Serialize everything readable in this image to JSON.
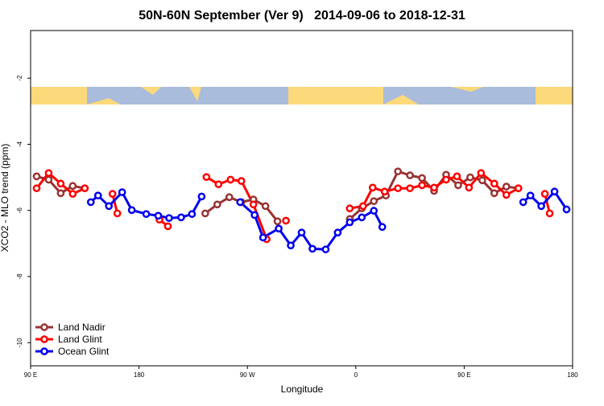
{
  "chart_data": {
    "type": "line",
    "title": "50N-60N September (Ver 9)   2014-09-06 to 2018-12-31",
    "xlabel": "Longitude",
    "ylabel": "XCO2 - MLO trend (ppm)",
    "xlim": [
      90,
      540
    ],
    "ylim": [
      -10.7,
      -0.56
    ],
    "xticks": [
      {
        "value": 90,
        "label": "90 E"
      },
      180,
      {
        "value": 270,
        "label": "90 W"
      },
      {
        "value": 360,
        "label": "0"
      },
      {
        "value": 450,
        "label": "90 E"
      },
      {
        "value": 540,
        "label": "180"
      }
    ],
    "yticks": [
      -2,
      -4,
      -6,
      -8,
      -10
    ],
    "legend": "lower left",
    "series": [
      {
        "name": "Land Nadir",
        "color": "#993333",
        "x": [
          95,
          105,
          115,
          125,
          135,
          null,
          235,
          245,
          255,
          265,
          275,
          285,
          295,
          null,
          355,
          365,
          375,
          385,
          395,
          405,
          415,
          425,
          435,
          445,
          455,
          465,
          475,
          485,
          495
        ],
        "values": [
          -4.97,
          -5.07,
          -5.48,
          -5.26,
          -5.33,
          null,
          -6.09,
          -5.82,
          -5.6,
          -5.75,
          -5.67,
          -5.87,
          -6.33,
          null,
          -6.26,
          -5.94,
          -5.72,
          -5.55,
          -4.82,
          -4.94,
          -5.02,
          -5.41,
          -4.92,
          -5.24,
          -5.0,
          -5.09,
          -5.48,
          -5.28,
          -5.33
        ]
      },
      {
        "name": "Land Glint",
        "color": "#ff0000",
        "x": [
          95,
          105,
          115,
          125,
          135,
          null,
          158,
          162,
          null,
          197,
          204,
          null,
          236,
          246,
          256,
          265,
          275,
          286,
          null,
          302,
          null,
          355,
          366,
          374,
          384,
          395,
          405,
          415,
          425,
          435,
          444,
          454,
          464,
          475,
          485,
          495,
          null,
          517,
          521
        ],
        "values": [
          -5.33,
          -4.87,
          -5.19,
          -5.5,
          -5.33,
          null,
          -5.5,
          -6.09,
          null,
          -6.28,
          -6.48,
          null,
          -4.99,
          -5.21,
          -5.07,
          -5.11,
          -5.82,
          -6.87,
          null,
          -6.31,
          null,
          -5.94,
          -5.87,
          -5.31,
          -5.43,
          -5.33,
          -5.33,
          -5.24,
          -5.31,
          -5.07,
          -4.97,
          -5.31,
          -4.87,
          -5.19,
          -5.53,
          -5.33,
          null,
          -5.5,
          -6.09
        ]
      },
      {
        "name": "Ocean Glint",
        "color": "#0000ee",
        "x": [
          140,
          146,
          155,
          166,
          174,
          186,
          196,
          205,
          215,
          224,
          232,
          null,
          264,
          276,
          283,
          296,
          306,
          315,
          324,
          335,
          345,
          355,
          365,
          375,
          382,
          null,
          499,
          505,
          514,
          525,
          535
        ],
        "values": [
          -5.75,
          -5.55,
          -5.87,
          -5.45,
          -5.99,
          -6.11,
          -6.16,
          -6.23,
          -6.21,
          -6.11,
          -5.58,
          null,
          -5.75,
          -6.14,
          -6.82,
          -6.55,
          -7.06,
          -6.67,
          -7.16,
          -7.18,
          -6.67,
          -6.36,
          -6.21,
          -6.01,
          -6.5,
          null,
          -5.75,
          -5.55,
          -5.87,
          -5.43,
          -5.97
        ]
      }
    ]
  }
}
